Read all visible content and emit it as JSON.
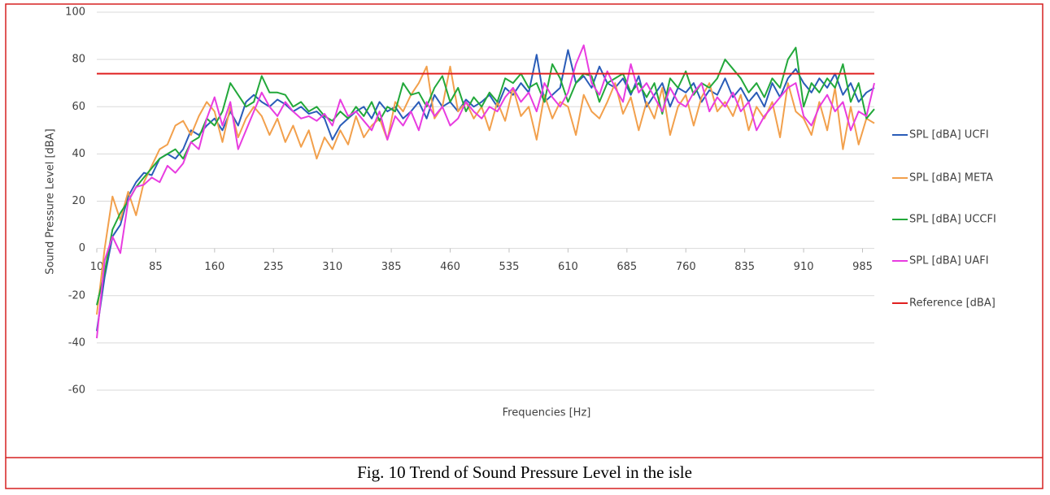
{
  "caption": "Fig. 10 Trend of Sound Pressure Level in the isle",
  "chart_data": {
    "type": "line",
    "xlabel": "Frequencies [Hz]",
    "ylabel": "Sound Pressure Level [dBA]",
    "xlim": [
      10,
      1000
    ],
    "xticks": [
      10,
      85,
      160,
      235,
      310,
      385,
      460,
      535,
      610,
      685,
      760,
      835,
      910,
      985
    ],
    "ylim": [
      -60,
      100
    ],
    "yticks": [
      -60,
      -40,
      -20,
      0,
      20,
      40,
      60,
      80,
      100
    ],
    "grid": true,
    "legend": "right",
    "x": [
      10,
      20,
      30,
      40,
      50,
      60,
      70,
      80,
      90,
      100,
      110,
      120,
      130,
      140,
      150,
      160,
      170,
      180,
      190,
      200,
      210,
      220,
      230,
      240,
      250,
      260,
      270,
      280,
      290,
      300,
      310,
      320,
      330,
      340,
      350,
      360,
      370,
      380,
      390,
      400,
      410,
      420,
      430,
      440,
      450,
      460,
      470,
      480,
      490,
      500,
      510,
      520,
      530,
      540,
      550,
      560,
      570,
      580,
      590,
      600,
      610,
      620,
      630,
      640,
      650,
      660,
      670,
      680,
      690,
      700,
      710,
      720,
      730,
      740,
      750,
      760,
      770,
      780,
      790,
      800,
      810,
      820,
      830,
      840,
      850,
      860,
      870,
      880,
      890,
      900,
      910,
      920,
      930,
      940,
      950,
      960,
      970,
      980,
      990,
      1000
    ],
    "series": [
      {
        "name": "SPL [dBA] UCFI",
        "color": "#2a5cb8",
        "values": [
          -35,
          -12,
          5,
          10,
          22,
          28,
          32,
          31,
          38,
          40,
          38,
          42,
          50,
          48,
          52,
          55,
          50,
          58,
          52,
          62,
          65,
          62,
          60,
          63,
          61,
          58,
          60,
          57,
          58,
          55,
          46,
          52,
          55,
          58,
          60,
          55,
          62,
          58,
          60,
          55,
          58,
          62,
          55,
          65,
          60,
          62,
          58,
          63,
          60,
          62,
          65,
          60,
          68,
          65,
          70,
          66,
          82,
          62,
          65,
          68,
          84,
          70,
          73,
          68,
          77,
          70,
          68,
          72,
          65,
          73,
          60,
          65,
          70,
          60,
          68,
          66,
          70,
          62,
          67,
          65,
          72,
          64,
          68,
          62,
          66,
          60,
          70,
          64,
          72,
          76,
          70,
          66,
          72,
          68,
          74,
          65,
          70,
          62,
          66,
          68
        ]
      },
      {
        "name": "SPL [dBA] META",
        "color": "#f2a04c",
        "values": [
          -28,
          0,
          22,
          12,
          24,
          14,
          28,
          35,
          42,
          44,
          52,
          54,
          48,
          56,
          62,
          58,
          45,
          60,
          47,
          55,
          60,
          56,
          48,
          55,
          45,
          52,
          43,
          50,
          38,
          47,
          42,
          50,
          44,
          56,
          47,
          52,
          55,
          46,
          62,
          58,
          65,
          70,
          77,
          55,
          60,
          77,
          58,
          62,
          55,
          60,
          50,
          62,
          54,
          68,
          56,
          60,
          46,
          65,
          55,
          62,
          60,
          48,
          65,
          58,
          55,
          62,
          70,
          57,
          64,
          50,
          62,
          55,
          68,
          48,
          60,
          65,
          52,
          64,
          70,
          58,
          62,
          56,
          65,
          50,
          60,
          55,
          62,
          47,
          70,
          58,
          55,
          48,
          62,
          50,
          68,
          42,
          60,
          44,
          55,
          53
        ]
      },
      {
        "name": "SPL [dBA] UCCFI",
        "color": "#22a83a",
        "values": [
          -24,
          -10,
          8,
          15,
          20,
          26,
          30,
          34,
          38,
          40,
          42,
          38,
          45,
          47,
          55,
          52,
          58,
          70,
          65,
          60,
          62,
          73,
          66,
          66,
          65,
          60,
          62,
          58,
          60,
          56,
          54,
          58,
          55,
          60,
          56,
          62,
          54,
          60,
          58,
          70,
          65,
          66,
          60,
          68,
          73,
          62,
          68,
          58,
          64,
          60,
          66,
          62,
          72,
          70,
          74,
          68,
          70,
          62,
          78,
          72,
          62,
          70,
          74,
          73,
          62,
          70,
          72,
          74,
          66,
          70,
          64,
          70,
          57,
          72,
          68,
          75,
          65,
          70,
          68,
          72,
          80,
          76,
          72,
          66,
          70,
          64,
          72,
          68,
          80,
          85,
          60,
          70,
          66,
          72,
          68,
          78,
          62,
          70,
          55,
          59
        ]
      },
      {
        "name": "SPL [dBA] UAFI",
        "color": "#e83ce0",
        "values": [
          -38,
          -5,
          5,
          -2,
          20,
          26,
          27,
          30,
          28,
          35,
          32,
          36,
          45,
          42,
          55,
          64,
          52,
          62,
          42,
          50,
          58,
          66,
          60,
          56,
          62,
          58,
          55,
          56,
          54,
          57,
          52,
          63,
          56,
          58,
          54,
          50,
          58,
          46,
          56,
          52,
          58,
          50,
          62,
          56,
          60,
          52,
          55,
          62,
          58,
          55,
          60,
          58,
          64,
          68,
          62,
          66,
          58,
          70,
          64,
          60,
          66,
          78,
          86,
          70,
          65,
          75,
          68,
          62,
          78,
          66,
          70,
          64,
          58,
          68,
          62,
          60,
          66,
          70,
          58,
          64,
          60,
          66,
          58,
          62,
          50,
          56,
          60,
          64,
          68,
          70,
          56,
          52,
          60,
          65,
          58,
          62,
          50,
          58,
          56,
          70
        ]
      },
      {
        "name": "Reference [dBA]",
        "color": "#e02020",
        "x": [
          10,
          1000
        ],
        "values": [
          74,
          74
        ]
      }
    ]
  }
}
